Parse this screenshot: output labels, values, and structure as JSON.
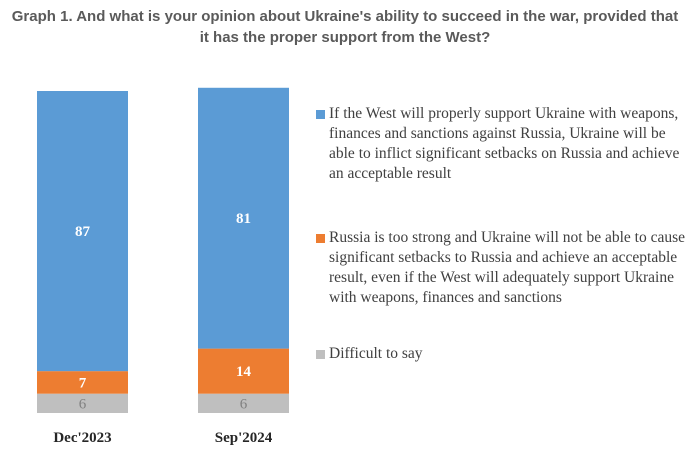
{
  "title_lines": [
    "Graph 1. And what is your opinion about Ukraine's ability to succeed in the war, provided that",
    "it has the proper support from the West?"
  ],
  "colors": {
    "support": "#5b9bd5",
    "too_strong": "#ed7d31",
    "difficult": "#bfbfbf"
  },
  "chart_data": {
    "type": "bar",
    "stacked": true,
    "orientation": "vertical",
    "categories": [
      "Dec'2023",
      "Sep'2024"
    ],
    "series": [
      {
        "name": "If the West will properly support Ukraine with weapons, finances and sanctions against Russia, Ukraine will be able to inflict significant setbacks on Russia and achieve an acceptable result",
        "values": [
          87,
          81
        ],
        "color": "#5b9bd5"
      },
      {
        "name": "Russia is too strong and Ukraine will not be able to cause significant setbacks to Russia and achieve an acceptable result, even if the West will adequately support Ukraine with weapons, finances and sanctions",
        "values": [
          7,
          14
        ],
        "color": "#ed7d31"
      },
      {
        "name": "Difficult to say",
        "values": [
          6,
          6
        ],
        "color": "#bfbfbf"
      }
    ],
    "ylim": [
      0,
      100
    ],
    "grid": false,
    "legend_position": "right"
  }
}
